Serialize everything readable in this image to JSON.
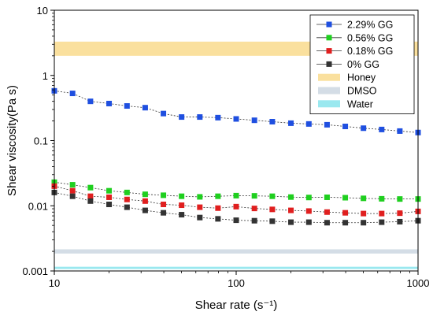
{
  "chart_data": {
    "type": "scatter",
    "title": "",
    "xlabel": "Shear rate (s⁻¹)",
    "ylabel": "Shear viscosity(Pa s)",
    "xscale": "log",
    "yscale": "log",
    "xlim": [
      10,
      1000
    ],
    "ylim": [
      0.001,
      10
    ],
    "xticks": [
      10,
      100,
      1000
    ],
    "xtick_labels": [
      "10",
      "100",
      "1000"
    ],
    "yticks": [
      0.001,
      0.01,
      0.1,
      1,
      10
    ],
    "ytick_labels": [
      "0.001",
      "0.01",
      "0.1",
      "1",
      "10"
    ],
    "grid": false,
    "legend_position": "top-right",
    "x": [
      10,
      12.6,
      15.8,
      20,
      25.1,
      31.6,
      39.8,
      50.1,
      63.1,
      79.4,
      100,
      126,
      158,
      200,
      251,
      316,
      398,
      501,
      631,
      794,
      1000
    ],
    "series": [
      {
        "name": "2.29% GG",
        "color": "#1f4fe0",
        "values": [
          0.58,
          0.53,
          0.4,
          0.37,
          0.34,
          0.32,
          0.26,
          0.23,
          0.23,
          0.225,
          0.215,
          0.205,
          0.195,
          0.185,
          0.18,
          0.175,
          0.165,
          0.155,
          0.148,
          0.14,
          0.133
        ]
      },
      {
        "name": "0.56% GG",
        "color": "#1fcf1f",
        "values": [
          0.023,
          0.021,
          0.019,
          0.017,
          0.016,
          0.015,
          0.0145,
          0.014,
          0.0137,
          0.014,
          0.0143,
          0.0142,
          0.014,
          0.0136,
          0.0134,
          0.0135,
          0.0133,
          0.013,
          0.0128,
          0.0127,
          0.0127
        ]
      },
      {
        "name": "0.18% GG",
        "color": "#e01f1f",
        "values": [
          0.02,
          0.017,
          0.014,
          0.0135,
          0.0125,
          0.0118,
          0.0105,
          0.0102,
          0.0095,
          0.0092,
          0.0097,
          0.0091,
          0.0088,
          0.0085,
          0.0083,
          0.008,
          0.0078,
          0.0076,
          0.0076,
          0.0077,
          0.0082
        ]
      },
      {
        "name": "0% GG",
        "color": "#333333",
        "values": [
          0.016,
          0.014,
          0.0118,
          0.0105,
          0.0095,
          0.0085,
          0.0078,
          0.0073,
          0.0066,
          0.0063,
          0.006,
          0.0059,
          0.0058,
          0.0056,
          0.0056,
          0.0055,
          0.0055,
          0.0055,
          0.0056,
          0.0057,
          0.0059
        ]
      }
    ],
    "bands": [
      {
        "name": "Honey",
        "color": "#f7cc5e",
        "opacity": 0.6,
        "y_range": [
          2.0,
          3.3
        ]
      },
      {
        "name": "DMSO",
        "color": "#b7c7d5",
        "opacity": 0.6,
        "y_range": [
          0.00185,
          0.00215
        ]
      },
      {
        "name": "Water",
        "color": "#57d8e4",
        "opacity": 0.6,
        "y_range": [
          0.00107,
          0.00116
        ]
      }
    ]
  }
}
